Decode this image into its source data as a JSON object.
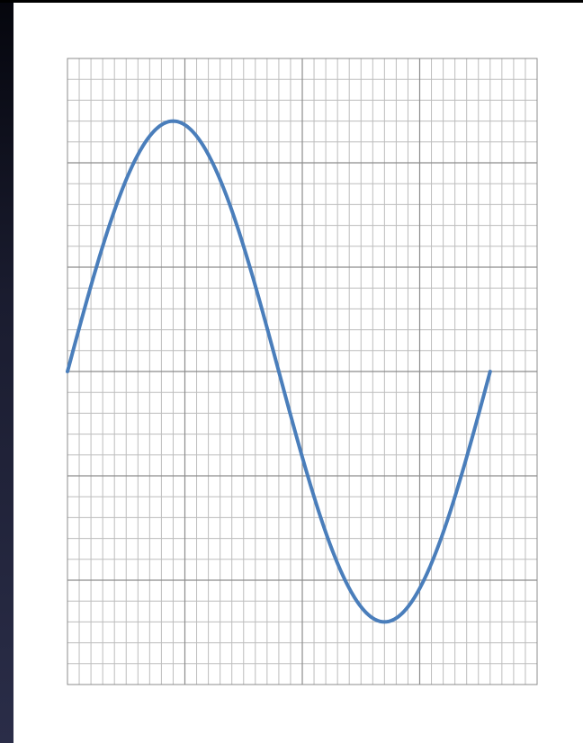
{
  "chart_data": {
    "type": "line",
    "title": "",
    "xlabel": "",
    "ylabel": "",
    "xlim": [
      0,
      40
    ],
    "ylim": [
      -1.5,
      1.5
    ],
    "grid": true,
    "grid_minor_x": 40,
    "grid_major_x": 4,
    "grid_minor_y": 30,
    "grid_major_y": 6,
    "series": [
      {
        "function": "sine",
        "amplitude": 1.2,
        "period": 36,
        "x_start": 0,
        "x_end": 36,
        "color": "#4a7ebb"
      }
    ]
  },
  "colors": {
    "minor_grid": "#bdbdbd",
    "major_grid": "#8c8c8c",
    "background": "#ffffff",
    "line": "#4a7ebb"
  }
}
